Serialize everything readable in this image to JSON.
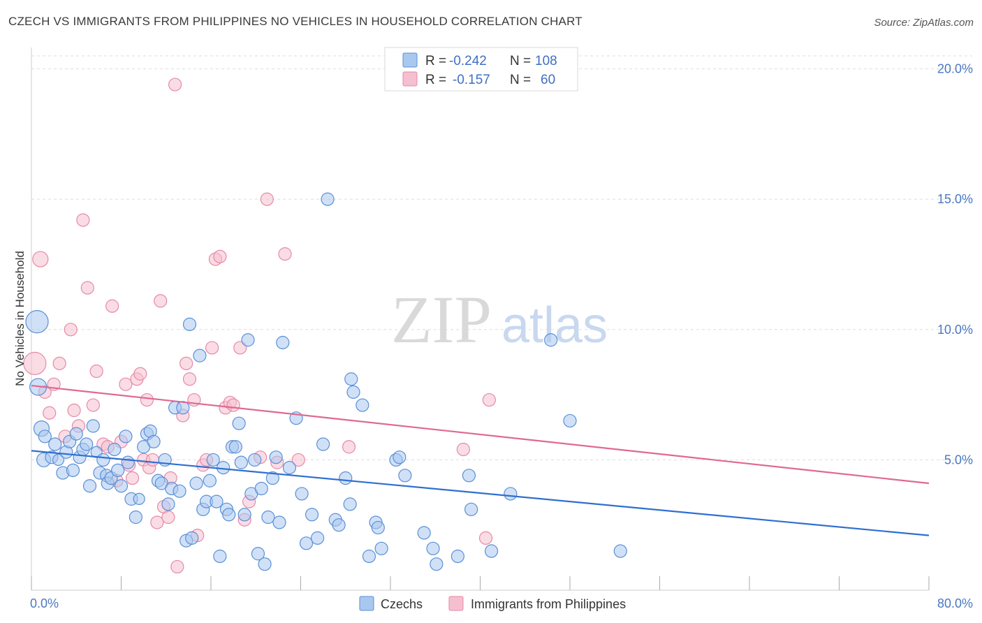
{
  "title": "CZECH VS IMMIGRANTS FROM PHILIPPINES NO VEHICLES IN HOUSEHOLD CORRELATION CHART",
  "source": "Source: ZipAtlas.com",
  "watermark": {
    "zip": "ZIP",
    "atlas": "atlas"
  },
  "colors": {
    "czech_fill": "#a9c8f0",
    "czech_stroke": "#5b8fd6",
    "czech_line": "#2f6fd0",
    "phil_fill": "#f6bfd0",
    "phil_stroke": "#e58aa8",
    "phil_line": "#e06892",
    "tick_label": "#4a78c2",
    "grid": "#dddddd"
  },
  "legend": {
    "rows": [
      {
        "r_label": "R = ",
        "r_value": "-0.242",
        "n_label": "N = ",
        "n_value": "108"
      },
      {
        "r_label": "R = ",
        "r_value": "-0.157",
        "n_label": "N = ",
        "n_value": "60"
      }
    ]
  },
  "bottom_legend": [
    "Czechs",
    "Immigrants from Philippines"
  ],
  "chart_data": {
    "type": "scatter",
    "title": "CZECH VS IMMIGRANTS FROM PHILIPPINES NO VEHICLES IN HOUSEHOLD CORRELATION CHART",
    "xlabel": "",
    "ylabel": "No Vehicles in Household",
    "xlim": [
      0,
      80
    ],
    "ylim": [
      0,
      20.5
    ],
    "x_tick_labels": [
      "0.0%",
      "80.0%"
    ],
    "y_ticks": [
      5,
      10,
      15,
      20
    ],
    "y_tick_labels": [
      "5.0%",
      "10.0%",
      "15.0%",
      "20.0%"
    ],
    "grid": true,
    "legend_position": "top-center",
    "series": [
      {
        "name": "Czechs",
        "r": -0.242,
        "n": 108,
        "trend": {
          "x": [
            0,
            80
          ],
          "y": [
            5.35,
            2.1
          ]
        },
        "points": [
          [
            0.5,
            10.3,
            16
          ],
          [
            0.6,
            7.8,
            12
          ],
          [
            0.9,
            6.2,
            11
          ],
          [
            1.1,
            5.0,
            10
          ],
          [
            1.2,
            5.9,
            9
          ],
          [
            1.8,
            5.1,
            9
          ],
          [
            2.1,
            5.6,
            9
          ],
          [
            2.4,
            5.0,
            8
          ],
          [
            2.8,
            4.5,
            9
          ],
          [
            3.1,
            5.3,
            9
          ],
          [
            3.4,
            5.7,
            9
          ],
          [
            3.7,
            4.6,
            9
          ],
          [
            4.0,
            6.0,
            9
          ],
          [
            4.3,
            5.1,
            9
          ],
          [
            4.6,
            5.4,
            9
          ],
          [
            4.9,
            5.6,
            9
          ],
          [
            5.2,
            4.0,
            9
          ],
          [
            5.5,
            6.3,
            9
          ],
          [
            5.8,
            5.3,
            8
          ],
          [
            6.1,
            4.5,
            9
          ],
          [
            6.4,
            5.0,
            9
          ],
          [
            6.7,
            4.4,
            9
          ],
          [
            6.8,
            4.1,
            9
          ],
          [
            7.1,
            4.3,
            9
          ],
          [
            7.4,
            5.4,
            9
          ],
          [
            7.7,
            4.6,
            9
          ],
          [
            8.0,
            4.0,
            9
          ],
          [
            8.4,
            5.9,
            9
          ],
          [
            8.6,
            4.9,
            9
          ],
          [
            8.9,
            3.5,
            9
          ],
          [
            9.3,
            2.8,
            9
          ],
          [
            9.6,
            3.5,
            8
          ],
          [
            10.0,
            5.5,
            9
          ],
          [
            10.3,
            6.0,
            9
          ],
          [
            10.6,
            6.1,
            9
          ],
          [
            10.9,
            5.7,
            9
          ],
          [
            11.3,
            4.2,
            9
          ],
          [
            11.6,
            4.1,
            9
          ],
          [
            11.9,
            5.0,
            9
          ],
          [
            12.2,
            3.3,
            9
          ],
          [
            12.5,
            3.9,
            9
          ],
          [
            12.8,
            7.0,
            9
          ],
          [
            13.2,
            3.8,
            9
          ],
          [
            13.5,
            7.0,
            9
          ],
          [
            13.8,
            1.9,
            9
          ],
          [
            14.1,
            10.2,
            9
          ],
          [
            14.3,
            2.0,
            9
          ],
          [
            14.7,
            4.1,
            9
          ],
          [
            15.0,
            9.0,
            9
          ],
          [
            15.3,
            3.1,
            9
          ],
          [
            15.6,
            3.4,
            9
          ],
          [
            15.9,
            4.2,
            9
          ],
          [
            16.2,
            5.0,
            9
          ],
          [
            16.5,
            3.4,
            9
          ],
          [
            16.8,
            1.3,
            9
          ],
          [
            17.1,
            4.7,
            9
          ],
          [
            17.4,
            3.1,
            9
          ],
          [
            17.6,
            2.9,
            9
          ],
          [
            17.9,
            5.5,
            9
          ],
          [
            18.2,
            5.5,
            9
          ],
          [
            18.5,
            6.4,
            9
          ],
          [
            18.7,
            4.9,
            9
          ],
          [
            19.0,
            2.9,
            9
          ],
          [
            19.3,
            9.6,
            9
          ],
          [
            19.6,
            3.7,
            9
          ],
          [
            19.9,
            5.0,
            9
          ],
          [
            20.2,
            1.4,
            9
          ],
          [
            20.5,
            3.9,
            9
          ],
          [
            20.8,
            1.0,
            9
          ],
          [
            21.1,
            2.8,
            9
          ],
          [
            21.5,
            4.3,
            9
          ],
          [
            21.8,
            5.1,
            9
          ],
          [
            22.1,
            2.6,
            9
          ],
          [
            22.4,
            9.5,
            9
          ],
          [
            23.0,
            4.7,
            9
          ],
          [
            23.6,
            6.6,
            9
          ],
          [
            24.1,
            3.7,
            9
          ],
          [
            24.5,
            1.8,
            9
          ],
          [
            25.0,
            2.9,
            9
          ],
          [
            25.5,
            2.0,
            9
          ],
          [
            26.0,
            5.6,
            9
          ],
          [
            26.4,
            15.0,
            9
          ],
          [
            27.1,
            2.7,
            9
          ],
          [
            27.4,
            2.5,
            9
          ],
          [
            28.0,
            4.3,
            9
          ],
          [
            28.4,
            3.3,
            9
          ],
          [
            28.5,
            8.1,
            9
          ],
          [
            28.7,
            7.6,
            9
          ],
          [
            29.5,
            7.1,
            9
          ],
          [
            30.1,
            1.3,
            9
          ],
          [
            30.7,
            2.6,
            9
          ],
          [
            30.9,
            2.4,
            9
          ],
          [
            31.2,
            1.6,
            9
          ],
          [
            32.5,
            5.0,
            9
          ],
          [
            32.8,
            5.1,
            9
          ],
          [
            33.3,
            4.4,
            9
          ],
          [
            35.0,
            2.2,
            9
          ],
          [
            35.8,
            1.6,
            9
          ],
          [
            36.1,
            1.0,
            9
          ],
          [
            38.0,
            1.3,
            9
          ],
          [
            39.0,
            4.4,
            9
          ],
          [
            39.2,
            3.1,
            9
          ],
          [
            41.0,
            1.5,
            9
          ],
          [
            42.7,
            3.7,
            9
          ],
          [
            48.0,
            6.5,
            9
          ],
          [
            52.5,
            1.5,
            9
          ],
          [
            46.3,
            9.6,
            9
          ]
        ]
      },
      {
        "name": "Immigrants from Philippines",
        "r": -0.157,
        "n": 60,
        "trend": {
          "x": [
            0,
            80
          ],
          "y": [
            7.85,
            4.1
          ]
        },
        "points": [
          [
            0.3,
            8.7,
            16
          ],
          [
            0.8,
            12.7,
            11
          ],
          [
            1.2,
            7.6,
            9
          ],
          [
            1.6,
            6.8,
            9
          ],
          [
            2.0,
            7.9,
            9
          ],
          [
            2.5,
            8.7,
            9
          ],
          [
            3.0,
            5.9,
            9
          ],
          [
            3.5,
            10.0,
            9
          ],
          [
            3.8,
            6.9,
            9
          ],
          [
            4.2,
            6.3,
            9
          ],
          [
            4.6,
            14.2,
            9
          ],
          [
            5.0,
            11.6,
            9
          ],
          [
            5.5,
            7.1,
            9
          ],
          [
            5.8,
            8.4,
            9
          ],
          [
            6.4,
            5.6,
            9
          ],
          [
            6.8,
            5.5,
            9
          ],
          [
            7.2,
            10.9,
            9
          ],
          [
            7.6,
            4.2,
            9
          ],
          [
            8.0,
            5.7,
            9
          ],
          [
            8.4,
            7.9,
            9
          ],
          [
            8.7,
            4.8,
            9
          ],
          [
            9.0,
            4.3,
            9
          ],
          [
            9.4,
            8.1,
            9
          ],
          [
            9.7,
            8.3,
            9
          ],
          [
            10.0,
            5.0,
            9
          ],
          [
            10.3,
            7.3,
            9
          ],
          [
            10.5,
            4.7,
            9
          ],
          [
            10.8,
            5.0,
            9
          ],
          [
            11.2,
            2.6,
            9
          ],
          [
            11.5,
            11.1,
            9
          ],
          [
            11.8,
            3.2,
            9
          ],
          [
            12.2,
            2.8,
            9
          ],
          [
            12.4,
            4.3,
            9
          ],
          [
            12.8,
            19.4,
            9
          ],
          [
            13.0,
            0.9,
            9
          ],
          [
            13.5,
            6.7,
            9
          ],
          [
            13.8,
            8.7,
            9
          ],
          [
            14.1,
            8.1,
            9
          ],
          [
            14.5,
            7.3,
            9
          ],
          [
            14.8,
            2.1,
            9
          ],
          [
            15.3,
            4.8,
            9
          ],
          [
            15.6,
            5.0,
            9
          ],
          [
            16.1,
            9.3,
            9
          ],
          [
            16.4,
            12.7,
            9
          ],
          [
            16.8,
            12.8,
            9
          ],
          [
            17.3,
            7.0,
            9
          ],
          [
            17.7,
            7.2,
            9
          ],
          [
            18.0,
            7.1,
            9
          ],
          [
            18.6,
            9.3,
            9
          ],
          [
            19.0,
            2.7,
            9
          ],
          [
            19.4,
            3.4,
            9
          ],
          [
            20.4,
            5.1,
            9
          ],
          [
            21.0,
            15.0,
            9
          ],
          [
            21.9,
            4.9,
            9
          ],
          [
            22.6,
            12.9,
            9
          ],
          [
            23.8,
            5.0,
            9
          ],
          [
            28.3,
            5.5,
            9
          ],
          [
            38.5,
            5.4,
            9
          ],
          [
            40.5,
            2.0,
            9
          ],
          [
            40.8,
            7.3,
            9
          ]
        ]
      }
    ]
  }
}
